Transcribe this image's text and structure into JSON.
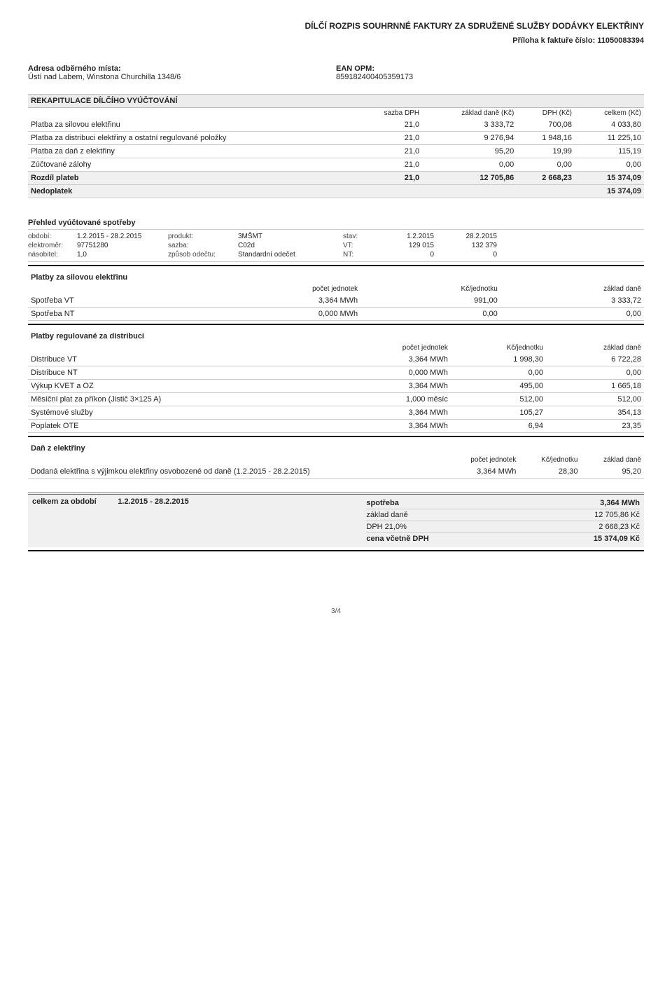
{
  "header": {
    "title": "DÍLČÍ ROZPIS SOUHRNNÉ FAKTURY ZA SDRUŽENÉ SLUŽBY DODÁVKY ELEKTŘINY",
    "attachment": "Příloha k faktuře číslo: 11050083394"
  },
  "address": {
    "left_label": "Adresa odběrného místa:",
    "left_value": "Ústí nad Labem, Winstona Churchilla 1348/6",
    "right_label": "EAN OPM:",
    "right_value": "859182400405359173"
  },
  "recap": {
    "band": "REKAPITULACE DÍLČÍHO VYÚČTOVÁNÍ",
    "cols": [
      "",
      "sazba DPH",
      "základ daně (Kč)",
      "DPH (Kč)",
      "celkem (Kč)"
    ],
    "rows": [
      [
        "Platba za silovou elektřinu",
        "21,0",
        "3 333,72",
        "700,08",
        "4 033,80"
      ],
      [
        "Platba za distribuci elektřiny a ostatní regulované položky",
        "21,0",
        "9 276,94",
        "1 948,16",
        "11 225,10"
      ],
      [
        "Platba za daň z elektřiny",
        "21,0",
        "95,20",
        "19,99",
        "115,19"
      ],
      [
        "Zúčtované zálohy",
        "21,0",
        "0,00",
        "0,00",
        "0,00"
      ],
      [
        "Rozdíl plateb",
        "21,0",
        "12 705,86",
        "2 668,23",
        "15 374,09"
      ],
      [
        "Nedoplatek",
        "",
        "",
        "",
        "15 374,09"
      ]
    ]
  },
  "consumption": {
    "title": "Přehled vyúčtované spotřeby",
    "rows": [
      {
        "l1": "období:",
        "v1": "1.2.2015 - 28.2.2015",
        "l2": "produkt:",
        "v2": "3MŠMT",
        "l3": "stav:",
        "n1": "1.2.2015",
        "n2": "28.2.2015"
      },
      {
        "l1": "elektroměr:",
        "v1": "97751280",
        "l2": "sazba:",
        "v2": "C02d",
        "l3": "VT:",
        "n1": "129 015",
        "n2": "132 379"
      },
      {
        "l1": "násobitel:",
        "v1": "1,0",
        "l2": "způsob odečtu:",
        "v2": "Standardní odečet",
        "l3": "NT:",
        "n1": "0",
        "n2": "0"
      }
    ]
  },
  "sil": {
    "title": "Platby za silovou elektřinu",
    "cols": [
      "",
      "počet jednotek",
      "Kč/jednotku",
      "základ daně"
    ],
    "rows": [
      [
        "Spotřeba VT",
        "3,364 MWh",
        "991,00",
        "3 333,72"
      ],
      [
        "Spotřeba NT",
        "0,000 MWh",
        "0,00",
        "0,00"
      ]
    ]
  },
  "dist": {
    "title": "Platby regulované za distribuci",
    "cols": [
      "",
      "počet jednotek",
      "Kč/jednotku",
      "základ daně"
    ],
    "rows": [
      [
        "Distribuce VT",
        "3,364 MWh",
        "1 998,30",
        "6 722,28"
      ],
      [
        "Distribuce NT",
        "0,000 MWh",
        "0,00",
        "0,00"
      ],
      [
        "Výkup KVET a OZ",
        "3,364 MWh",
        "495,00",
        "1 665,18"
      ],
      [
        "Měsíční plat za příkon (Jistič 3×125 A)",
        "1,000 měsíc",
        "512,00",
        "512,00"
      ],
      [
        "Systémové služby",
        "3,364 MWh",
        "105,27",
        "354,13"
      ],
      [
        "Poplatek OTE",
        "3,364 MWh",
        "6,94",
        "23,35"
      ]
    ]
  },
  "tax": {
    "title": "Daň z elektřiny",
    "cols": [
      "",
      "počet jednotek",
      "Kč/jednotku",
      "základ daně"
    ],
    "rows": [
      [
        "Dodaná elektřina s výjimkou elektřiny osvobozené od daně (1.2.2015 - 28.2.2015)",
        "3,364 MWh",
        "28,30",
        "95,20"
      ]
    ]
  },
  "summary": {
    "left_label": "celkem za období",
    "left_period": "1.2.2015 - 28.2.2015",
    "rows": [
      [
        "spotřeba",
        "3,364 MWh"
      ],
      [
        "základ daně",
        "12 705,86 Kč"
      ],
      [
        "DPH 21,0%",
        "2 668,23 Kč"
      ],
      [
        "cena včetně DPH",
        "15 374,09 Kč"
      ]
    ]
  },
  "page": "3/4"
}
